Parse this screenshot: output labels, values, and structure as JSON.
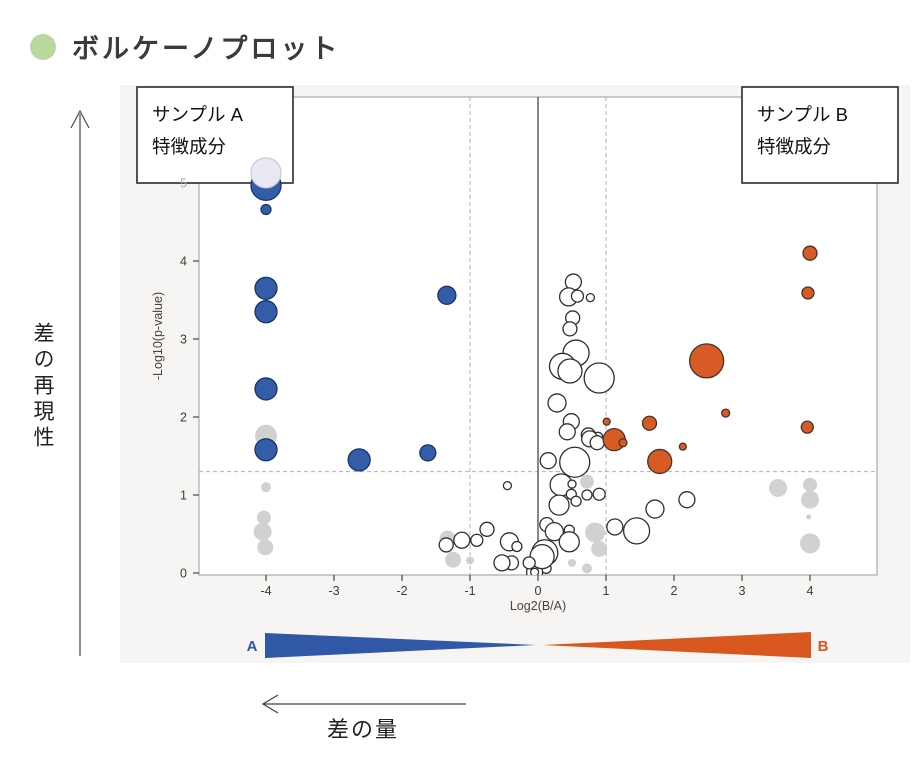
{
  "page": {
    "title": "ボルケーノプロット",
    "title_dot_color": "#b9d89b"
  },
  "left_axis_annotation": {
    "label": "差の再現性"
  },
  "bottom_annotation": {
    "label": "差の量"
  },
  "chart_data": {
    "type": "scatter",
    "subtype": "volcano-bubble-plot",
    "xlabel": "Log2(B/A)",
    "ylabel": "-Log10(p-value)",
    "xlim": [
      -5,
      5
    ],
    "ylim": [
      0,
      6.1
    ],
    "xticks": [
      -4,
      -3,
      -2,
      -1,
      0,
      1,
      2,
      3,
      4
    ],
    "yticks": [
      0,
      1,
      2,
      3,
      4,
      5
    ],
    "muted_ytick": 5,
    "grid": {
      "v_solid": 0,
      "v_dashed": [
        -1,
        1
      ],
      "h_dashed": 1.3
    },
    "annotation_boxes": [
      {
        "id": "A",
        "lines": [
          "サンプル A",
          "特徴成分"
        ]
      },
      {
        "id": "B",
        "lines": [
          "サンプル B",
          "特徴成分"
        ]
      }
    ],
    "series": [
      {
        "name": "excluded-gray",
        "fill": "#c9c9c9",
        "stroke": "none",
        "opacity": 0.85,
        "points": [
          [
            -4.0,
            1.76,
            11
          ],
          [
            -4.0,
            1.1,
            5
          ],
          [
            -4.03,
            0.71,
            7
          ],
          [
            -4.05,
            0.53,
            9
          ],
          [
            -4.01,
            0.33,
            8
          ],
          [
            -1.33,
            0.44,
            8
          ],
          [
            -1.25,
            0.17,
            8
          ],
          [
            -1.0,
            0.16,
            4
          ],
          [
            0.72,
            1.17,
            7
          ],
          [
            0.84,
            0.52,
            10
          ],
          [
            0.9,
            0.31,
            8
          ],
          [
            0.5,
            0.13,
            4
          ],
          [
            0.72,
            0.06,
            5
          ],
          [
            3.53,
            1.09,
            9
          ],
          [
            4.0,
            1.13,
            7
          ],
          [
            4.0,
            0.94,
            9
          ],
          [
            3.98,
            0.72,
            2.5
          ],
          [
            4.0,
            0.38,
            10
          ]
        ]
      },
      {
        "name": "not-significant-white",
        "fill": "#ffffff",
        "stroke": "#2f2f2f",
        "opacity": 1,
        "points": [
          [
            0.52,
            3.73,
            8
          ],
          [
            0.45,
            3.54,
            9
          ],
          [
            0.58,
            3.55,
            6
          ],
          [
            0.77,
            3.53,
            4
          ],
          [
            0.51,
            3.27,
            7
          ],
          [
            0.47,
            3.13,
            7
          ],
          [
            0.56,
            2.82,
            13
          ],
          [
            0.36,
            2.65,
            13
          ],
          [
            0.47,
            2.59,
            12
          ],
          [
            0.9,
            2.5,
            15
          ],
          [
            0.28,
            2.18,
            9
          ],
          [
            0.49,
            1.94,
            8
          ],
          [
            0.43,
            1.81,
            8
          ],
          [
            0.74,
            1.77,
            7
          ],
          [
            0.88,
            1.74,
            5
          ],
          [
            0.76,
            1.72,
            8
          ],
          [
            0.87,
            1.67,
            7
          ],
          [
            0.15,
            1.44,
            8
          ],
          [
            0.54,
            1.42,
            15
          ],
          [
            -0.45,
            1.12,
            4
          ],
          [
            0.34,
            1.13,
            11
          ],
          [
            0.5,
            1.14,
            4
          ],
          [
            0.49,
            1.01,
            5
          ],
          [
            0.31,
            0.87,
            10
          ],
          [
            0.56,
            0.92,
            5
          ],
          [
            0.72,
            1.0,
            5
          ],
          [
            0.9,
            1.01,
            6
          ],
          [
            0.13,
            0.62,
            7
          ],
          [
            0.24,
            0.53,
            9
          ],
          [
            0.46,
            0.55,
            5
          ],
          [
            0.46,
            0.4,
            10
          ],
          [
            0.1,
            0.26,
            13
          ],
          [
            0.1,
            0.26,
            5
          ],
          [
            -0.01,
            0.08,
            7
          ],
          [
            0.12,
            0.06,
            5
          ],
          [
            0.17,
            0.17,
            4
          ],
          [
            -0.05,
            0.01,
            8
          ],
          [
            -0.05,
            0.01,
            4
          ],
          [
            0.06,
            0.21,
            12
          ],
          [
            -1.35,
            0.36,
            7
          ],
          [
            -1.12,
            0.42,
            8
          ],
          [
            -0.9,
            0.42,
            6
          ],
          [
            -0.75,
            0.56,
            7
          ],
          [
            -0.42,
            0.4,
            9
          ],
          [
            -0.31,
            0.34,
            5
          ],
          [
            -0.39,
            0.13,
            7
          ],
          [
            -0.13,
            0.13,
            6
          ],
          [
            -0.53,
            0.13,
            8
          ],
          [
            1.13,
            0.59,
            8
          ],
          [
            1.45,
            0.54,
            13
          ],
          [
            1.72,
            0.82,
            9
          ],
          [
            2.19,
            0.94,
            8
          ]
        ]
      },
      {
        "name": "sample-A-features-blue",
        "fill": "#335da6",
        "stroke": "#17356b",
        "opacity": 1,
        "points": [
          [
            -4.0,
            4.97,
            15
          ],
          [
            -4.0,
            4.66,
            5
          ],
          [
            -4.0,
            3.65,
            11
          ],
          [
            -4.0,
            3.35,
            11
          ],
          [
            -4.0,
            2.36,
            11
          ],
          [
            -4.0,
            1.58,
            11
          ],
          [
            -2.63,
            1.45,
            11
          ],
          [
            -1.62,
            1.54,
            8
          ],
          [
            -1.34,
            3.56,
            9
          ]
        ]
      },
      {
        "name": "pale-highlight",
        "fill": "#e9e9f4",
        "stroke": "#c9c9dc",
        "opacity": 1,
        "points": [
          [
            -4.0,
            5.13,
            15
          ]
        ]
      },
      {
        "name": "sample-B-features-orange",
        "fill": "#d85a24",
        "stroke": "#44352c",
        "opacity": 1,
        "points": [
          [
            4.0,
            4.1,
            7
          ],
          [
            3.97,
            3.59,
            6
          ],
          [
            2.48,
            2.72,
            17
          ],
          [
            2.76,
            2.05,
            4
          ],
          [
            1.01,
            1.94,
            3.5
          ],
          [
            1.64,
            1.92,
            7
          ],
          [
            1.12,
            1.71,
            11
          ],
          [
            1.25,
            1.67,
            4
          ],
          [
            2.13,
            1.62,
            3.5
          ],
          [
            1.79,
            1.43,
            12
          ],
          [
            3.96,
            1.87,
            6
          ]
        ]
      }
    ],
    "footer_gradient": {
      "left_label": "A",
      "right_label": "B",
      "left_color": "#3157a7",
      "right_color": "#d8571f"
    }
  }
}
